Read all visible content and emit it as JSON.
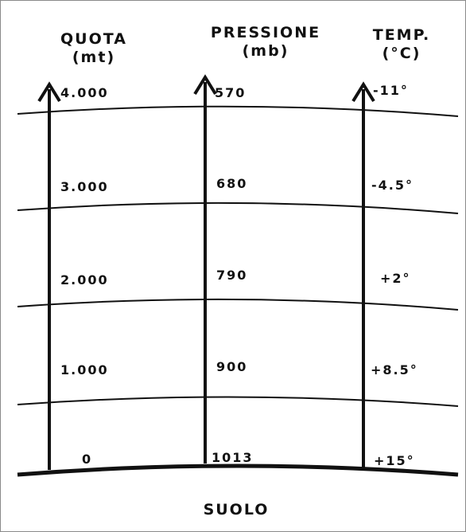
{
  "headers": {
    "quota": {
      "title": "QUOTA",
      "unit": "(mt)"
    },
    "pressione": {
      "title": "PRESSIONE",
      "unit": "(mb)"
    },
    "temp": {
      "title": "TEMP.",
      "unit": "(°C)"
    }
  },
  "levels": [
    {
      "quota": "4.000",
      "pressione": "570",
      "temp": "-11°"
    },
    {
      "quota": "3.000",
      "pressione": "680",
      "temp": "-4.5°"
    },
    {
      "quota": "2.000",
      "pressione": "790",
      "temp": "+2°"
    },
    {
      "quota": "1.000",
      "pressione": "900",
      "temp": "+8.5°"
    },
    {
      "quota": "0",
      "pressione": "1013",
      "temp": "+15°"
    }
  ],
  "ground_label": "SUOLO",
  "colors": {
    "ink": "#111111",
    "border": "#8a8a8a",
    "background": "#ffffff"
  }
}
